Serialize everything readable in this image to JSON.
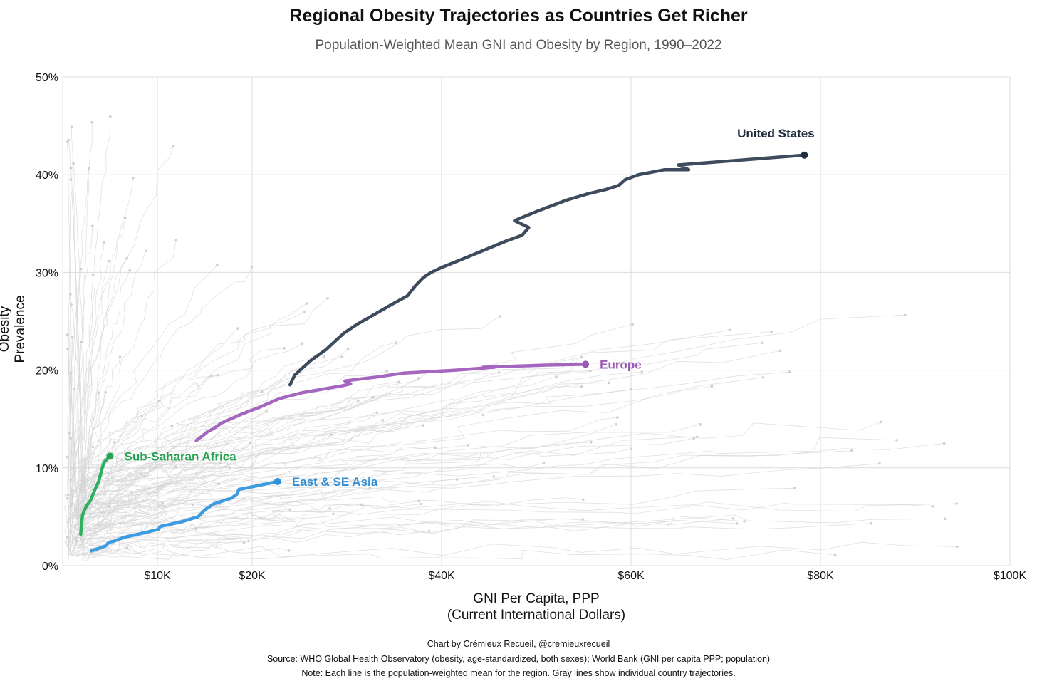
{
  "chart_data": {
    "type": "line",
    "title": "Regional Obesity Trajectories as Countries Get Richer",
    "subtitle": "Population-Weighted Mean GNI and Obesity by Region, 1990–2022",
    "xlabel": [
      "GNI Per Capita, PPP",
      "(Current International Dollars)"
    ],
    "ylabel": "Obesity Prevalence",
    "xlim": [
      0,
      100
    ],
    "ylim": [
      0,
      50
    ],
    "x_units": "thousand USD",
    "y_units": "percent",
    "x_ticks": [
      {
        "v": 10,
        "label": "$10K"
      },
      {
        "v": 20,
        "label": "$20K"
      },
      {
        "v": 40,
        "label": "$40K"
      },
      {
        "v": 60,
        "label": "$60K"
      },
      {
        "v": 80,
        "label": "$80K"
      },
      {
        "v": 100,
        "label": "$100K"
      }
    ],
    "y_ticks": [
      {
        "v": 0,
        "label": "0%"
      },
      {
        "v": 10,
        "label": "10%"
      },
      {
        "v": 20,
        "label": "20%"
      },
      {
        "v": 30,
        "label": "30%"
      },
      {
        "v": 40,
        "label": "40%"
      },
      {
        "v": 50,
        "label": "50%"
      }
    ],
    "grid": true,
    "series": [
      {
        "name": "United States",
        "color": "#3d4b5c",
        "label_color": "#1f2d3d",
        "label_pos": "above",
        "x": [
          24.0,
          24.5,
          26.2,
          27.8,
          28.9,
          29.7,
          31.1,
          32.9,
          34.7,
          36.4,
          37.2,
          38.1,
          38.9,
          40.0,
          42.3,
          44.8,
          46.8,
          48.5,
          49.2,
          47.7,
          48.7,
          50.2,
          53.2,
          55.3,
          57.4,
          58.7,
          59.4,
          60.8,
          63.5,
          66.1,
          65.0,
          78.3
        ],
        "y": [
          18.5,
          19.5,
          21.0,
          22.1,
          23.1,
          23.8,
          24.7,
          25.7,
          26.7,
          27.6,
          28.6,
          29.5,
          30.0,
          30.5,
          31.4,
          32.4,
          33.2,
          33.8,
          34.6,
          35.3,
          35.7,
          36.3,
          37.4,
          38.0,
          38.5,
          38.9,
          39.5,
          40.0,
          40.5,
          40.5,
          41.0,
          42.0
        ]
      },
      {
        "name": "Europe",
        "color": "#a466bf",
        "label_color": "#9b59b6",
        "label_pos": "right",
        "x": [
          14.1,
          14.8,
          15.3,
          15.9,
          16.8,
          18.9,
          20.8,
          22.9,
          25.3,
          29.5,
          30.4,
          29.8,
          33.2,
          36.0,
          41.5,
          45.6,
          44.4,
          50.5,
          55.2
        ],
        "y": [
          12.8,
          13.3,
          13.7,
          14.0,
          14.6,
          15.5,
          16.2,
          17.1,
          17.7,
          18.4,
          18.6,
          18.9,
          19.3,
          19.7,
          20.0,
          20.3,
          20.3,
          20.5,
          20.6
        ]
      },
      {
        "name": "Sub-Saharan Africa",
        "color": "#2fb061",
        "label_color": "#27a453",
        "label_pos": "right",
        "x": [
          1.9,
          2.0,
          2.1,
          2.5,
          2.9,
          3.2,
          3.5,
          3.8,
          4.1,
          4.3,
          4.4,
          5.0
        ],
        "y": [
          3.2,
          4.3,
          5.2,
          6.1,
          6.6,
          7.3,
          8.0,
          8.6,
          9.7,
          10.4,
          10.6,
          11.2
        ]
      },
      {
        "name": "East & SE Asia",
        "color": "#3d9be0",
        "label_color": "#2e8fd6",
        "label_pos": "right",
        "x": [
          3.0,
          4.5,
          4.9,
          5.4,
          6.5,
          7.9,
          10.1,
          10.3,
          12.6,
          14.3,
          15.0,
          15.9,
          17.8,
          18.4,
          18.6,
          19.7,
          22.7
        ],
        "y": [
          1.5,
          2.0,
          2.4,
          2.5,
          2.9,
          3.2,
          3.7,
          4.0,
          4.5,
          5.0,
          5.7,
          6.3,
          6.9,
          7.3,
          7.8,
          8.0,
          8.6
        ]
      }
    ],
    "background_series_note": "individual country trajectories"
  },
  "footer": {
    "credit": "Chart by Crémieux Recueil, @cremieuxrecueil",
    "source": "Source: WHO Global Health Observatory (obesity, age-standardized, both sexes); World Bank (GNI per capita PPP; population)",
    "note": "Note: Each line is the population-weighted mean for the region. Gray lines show individual country trajectories."
  }
}
